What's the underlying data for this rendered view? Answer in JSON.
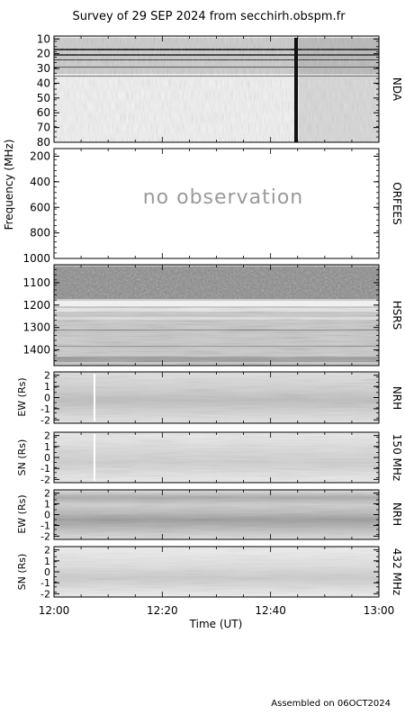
{
  "title": "Survey of 29 SEP 2024 from secchirh.obspm.fr",
  "footer": "Assembled on 06OCT2024",
  "chart_data": [
    {
      "type": "heatmap",
      "instrument": "NDA",
      "ytick_labels": [
        "10",
        "20",
        "30",
        "40",
        "50",
        "60",
        "70",
        "80"
      ],
      "yticks": [
        10,
        20,
        30,
        40,
        50,
        60,
        70,
        80
      ],
      "ylim": [
        80,
        8
      ],
      "yunit": "MHz"
    },
    {
      "type": "heatmap",
      "instrument": "ORFEES",
      "ytick_labels": [
        "200",
        "400",
        "600",
        "800",
        "1000"
      ],
      "yticks": [
        200,
        400,
        600,
        800,
        1000
      ],
      "ylim": [
        1000,
        140
      ],
      "annotation": "no observation"
    },
    {
      "type": "heatmap",
      "instrument": "HSRS",
      "ytick_labels": [
        "1100",
        "1200",
        "1300",
        "1400"
      ],
      "yticks": [
        1100,
        1200,
        1300,
        1400
      ],
      "ylim": [
        1470,
        1020
      ]
    },
    {
      "type": "heatmap",
      "instrument": "NRH 150 MHz",
      "ylabel": "EW (Rs)",
      "ytick_labels": [
        "2",
        "1",
        "0",
        "-1",
        "-2"
      ],
      "yticks": [
        2,
        1,
        0,
        -1,
        -2
      ],
      "ylim": [
        -2.3,
        2.3
      ]
    },
    {
      "type": "heatmap",
      "instrument": "NRH 150 MHz",
      "ylabel": "SN (Rs)",
      "ytick_labels": [
        "2",
        "1",
        "0",
        "-1",
        "-2"
      ],
      "yticks": [
        2,
        1,
        0,
        -1,
        -2
      ],
      "ylim": [
        -2.3,
        2.3
      ]
    },
    {
      "type": "heatmap",
      "instrument": "NRH 432 MHz",
      "ylabel": "EW (Rs)",
      "ytick_labels": [
        "2",
        "1",
        "0",
        "-1",
        "-2"
      ],
      "yticks": [
        2,
        1,
        0,
        -1,
        -2
      ],
      "ylim": [
        -2.3,
        2.3
      ]
    },
    {
      "type": "heatmap",
      "instrument": "NRH 432 MHz",
      "ylabel": "SN (Rs)",
      "ytick_labels": [
        "2",
        "1",
        "0",
        "-1",
        "-2"
      ],
      "yticks": [
        2,
        1,
        0,
        -1,
        -2
      ],
      "ylim": [
        -2.3,
        2.3
      ]
    }
  ],
  "labels": {
    "nda": "NDA",
    "orfees": "ORFEES",
    "hsrs": "HSRS",
    "nrh150_a": "NRH",
    "nrh150_b": "150 MHz",
    "nrh432_a": "NRH",
    "nrh432_b": "432 MHz",
    "freq_axis": "Frequency (MHz)",
    "no_obs": "no observation"
  },
  "x_axis": {
    "label": "Time (UT)",
    "xlim": [
      "12:00",
      "13:00"
    ],
    "ticks": [
      "12:00",
      "12:20",
      "12:40",
      "13:00"
    ]
  },
  "colors": {
    "frame": "#000000",
    "no_obs_text": "#9a9a9a"
  }
}
